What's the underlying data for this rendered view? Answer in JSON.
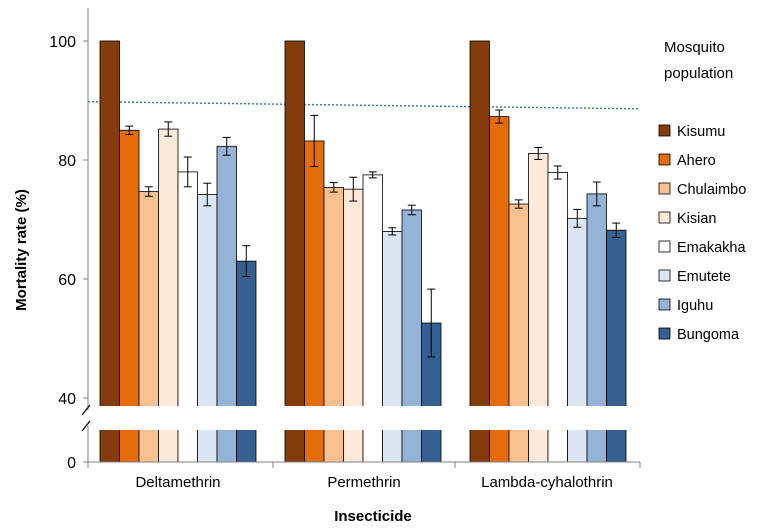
{
  "chart_data": {
    "type": "bar",
    "xlabel": "Insecticide",
    "ylabel": "Mortality rate (%)",
    "ylim": [
      40,
      105
    ],
    "y_ticks": [
      0,
      40,
      60,
      80,
      100
    ],
    "axis_break": true,
    "grid": false,
    "legend_position": "right",
    "legend_title_lines": [
      "Mosquito",
      "population"
    ],
    "categories": [
      "Deltamethrin",
      "Permethrin",
      "Lambda-cyhalothrin"
    ],
    "series": [
      {
        "name": "Kisumu",
        "color": "#843C0C",
        "values": [
          100,
          100,
          100
        ],
        "errors": [
          0,
          0,
          0
        ]
      },
      {
        "name": "Ahero",
        "color": "#E46C0A",
        "values": [
          85,
          83.2,
          87.3
        ],
        "errors": [
          0.7,
          4.3,
          1.1
        ]
      },
      {
        "name": "Chulaimbo",
        "color": "#FAC090",
        "values": [
          74.7,
          75.4,
          72.6
        ],
        "errors": [
          0.8,
          0.8,
          0.7
        ]
      },
      {
        "name": "Kisian",
        "color": "#FDE9D9",
        "values": [
          85.2,
          75.1,
          81.1
        ],
        "errors": [
          1.2,
          2.0,
          1.0
        ]
      },
      {
        "name": "Emakakha",
        "color": "#FFFFFF",
        "values": [
          78,
          77.5,
          77.9
        ],
        "errors": [
          2.5,
          0.5,
          1.1
        ]
      },
      {
        "name": "Emutete",
        "color": "#DCE6F2",
        "values": [
          74.2,
          68,
          70.2
        ],
        "errors": [
          1.9,
          0.6,
          1.5
        ]
      },
      {
        "name": "Iguhu",
        "color": "#95B3D7",
        "values": [
          82.3,
          71.6,
          74.3
        ],
        "errors": [
          1.5,
          0.8,
          2.0
        ]
      },
      {
        "name": "Bungoma",
        "color": "#366092",
        "values": [
          63,
          52.6,
          68.2
        ],
        "errors": [
          2.6,
          5.7,
          1.2
        ]
      }
    ],
    "reference_line": {
      "color": "#2E75B6",
      "style": "dotted",
      "y_start": 89.8,
      "y_end": 88.6
    }
  }
}
